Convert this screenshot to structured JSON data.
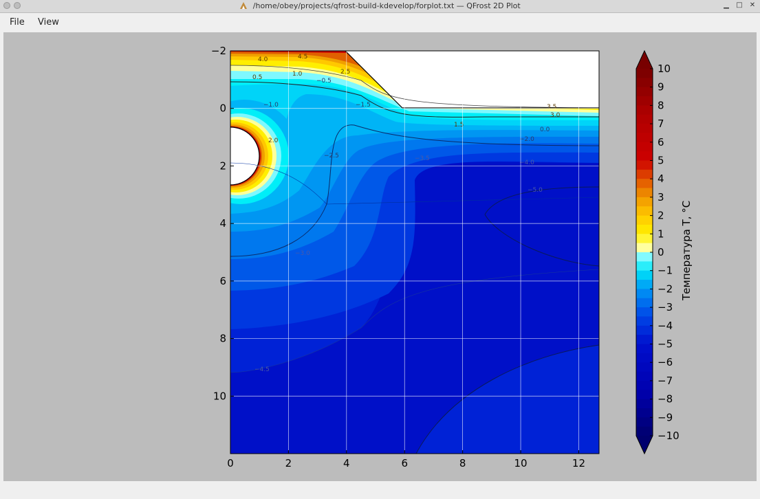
{
  "window": {
    "title": "/home/obey/projects/qfrost-build-kdevelop/forplot.txt — QFrost 2D Plot"
  },
  "menu": {
    "file": "File",
    "view": "View"
  },
  "colors": {
    "background": "#bcbcbc",
    "frozen": "#0010c8",
    "ice": "#00e4f8",
    "warm": "#cc0000"
  },
  "chart_data": {
    "type": "heatmap",
    "x_ticks": [
      "0",
      "2",
      "4",
      "6",
      "8",
      "10",
      "12"
    ],
    "y_ticks": [
      "−2",
      "0",
      "2",
      "4",
      "6",
      "8",
      "10"
    ],
    "xlim": [
      0,
      12.7
    ],
    "ylim": [
      -2,
      12
    ],
    "y_inverted": true,
    "grid": true,
    "colorbar": {
      "label": "Температура T, °C",
      "ticks": [
        "10",
        "9",
        "8",
        "7",
        "6",
        "5",
        "4",
        "3",
        "2",
        "1",
        "0",
        "−1",
        "−2",
        "−3",
        "−4",
        "−5",
        "−6",
        "−7",
        "−8",
        "−9",
        "−10"
      ],
      "range": [
        -10,
        10
      ],
      "placement": "right"
    },
    "contour_labels": [
      "4.5",
      "4.0",
      "3.5",
      "3.0",
      "2.5",
      "2.0",
      "1.5",
      "1.0",
      "0.5",
      "0.0",
      "−0.5",
      "−1.0",
      "−1.5",
      "−2.0",
      "−2.5",
      "−3.0",
      "−3.5",
      "−4.0",
      "−4.5",
      "−5.0"
    ]
  }
}
